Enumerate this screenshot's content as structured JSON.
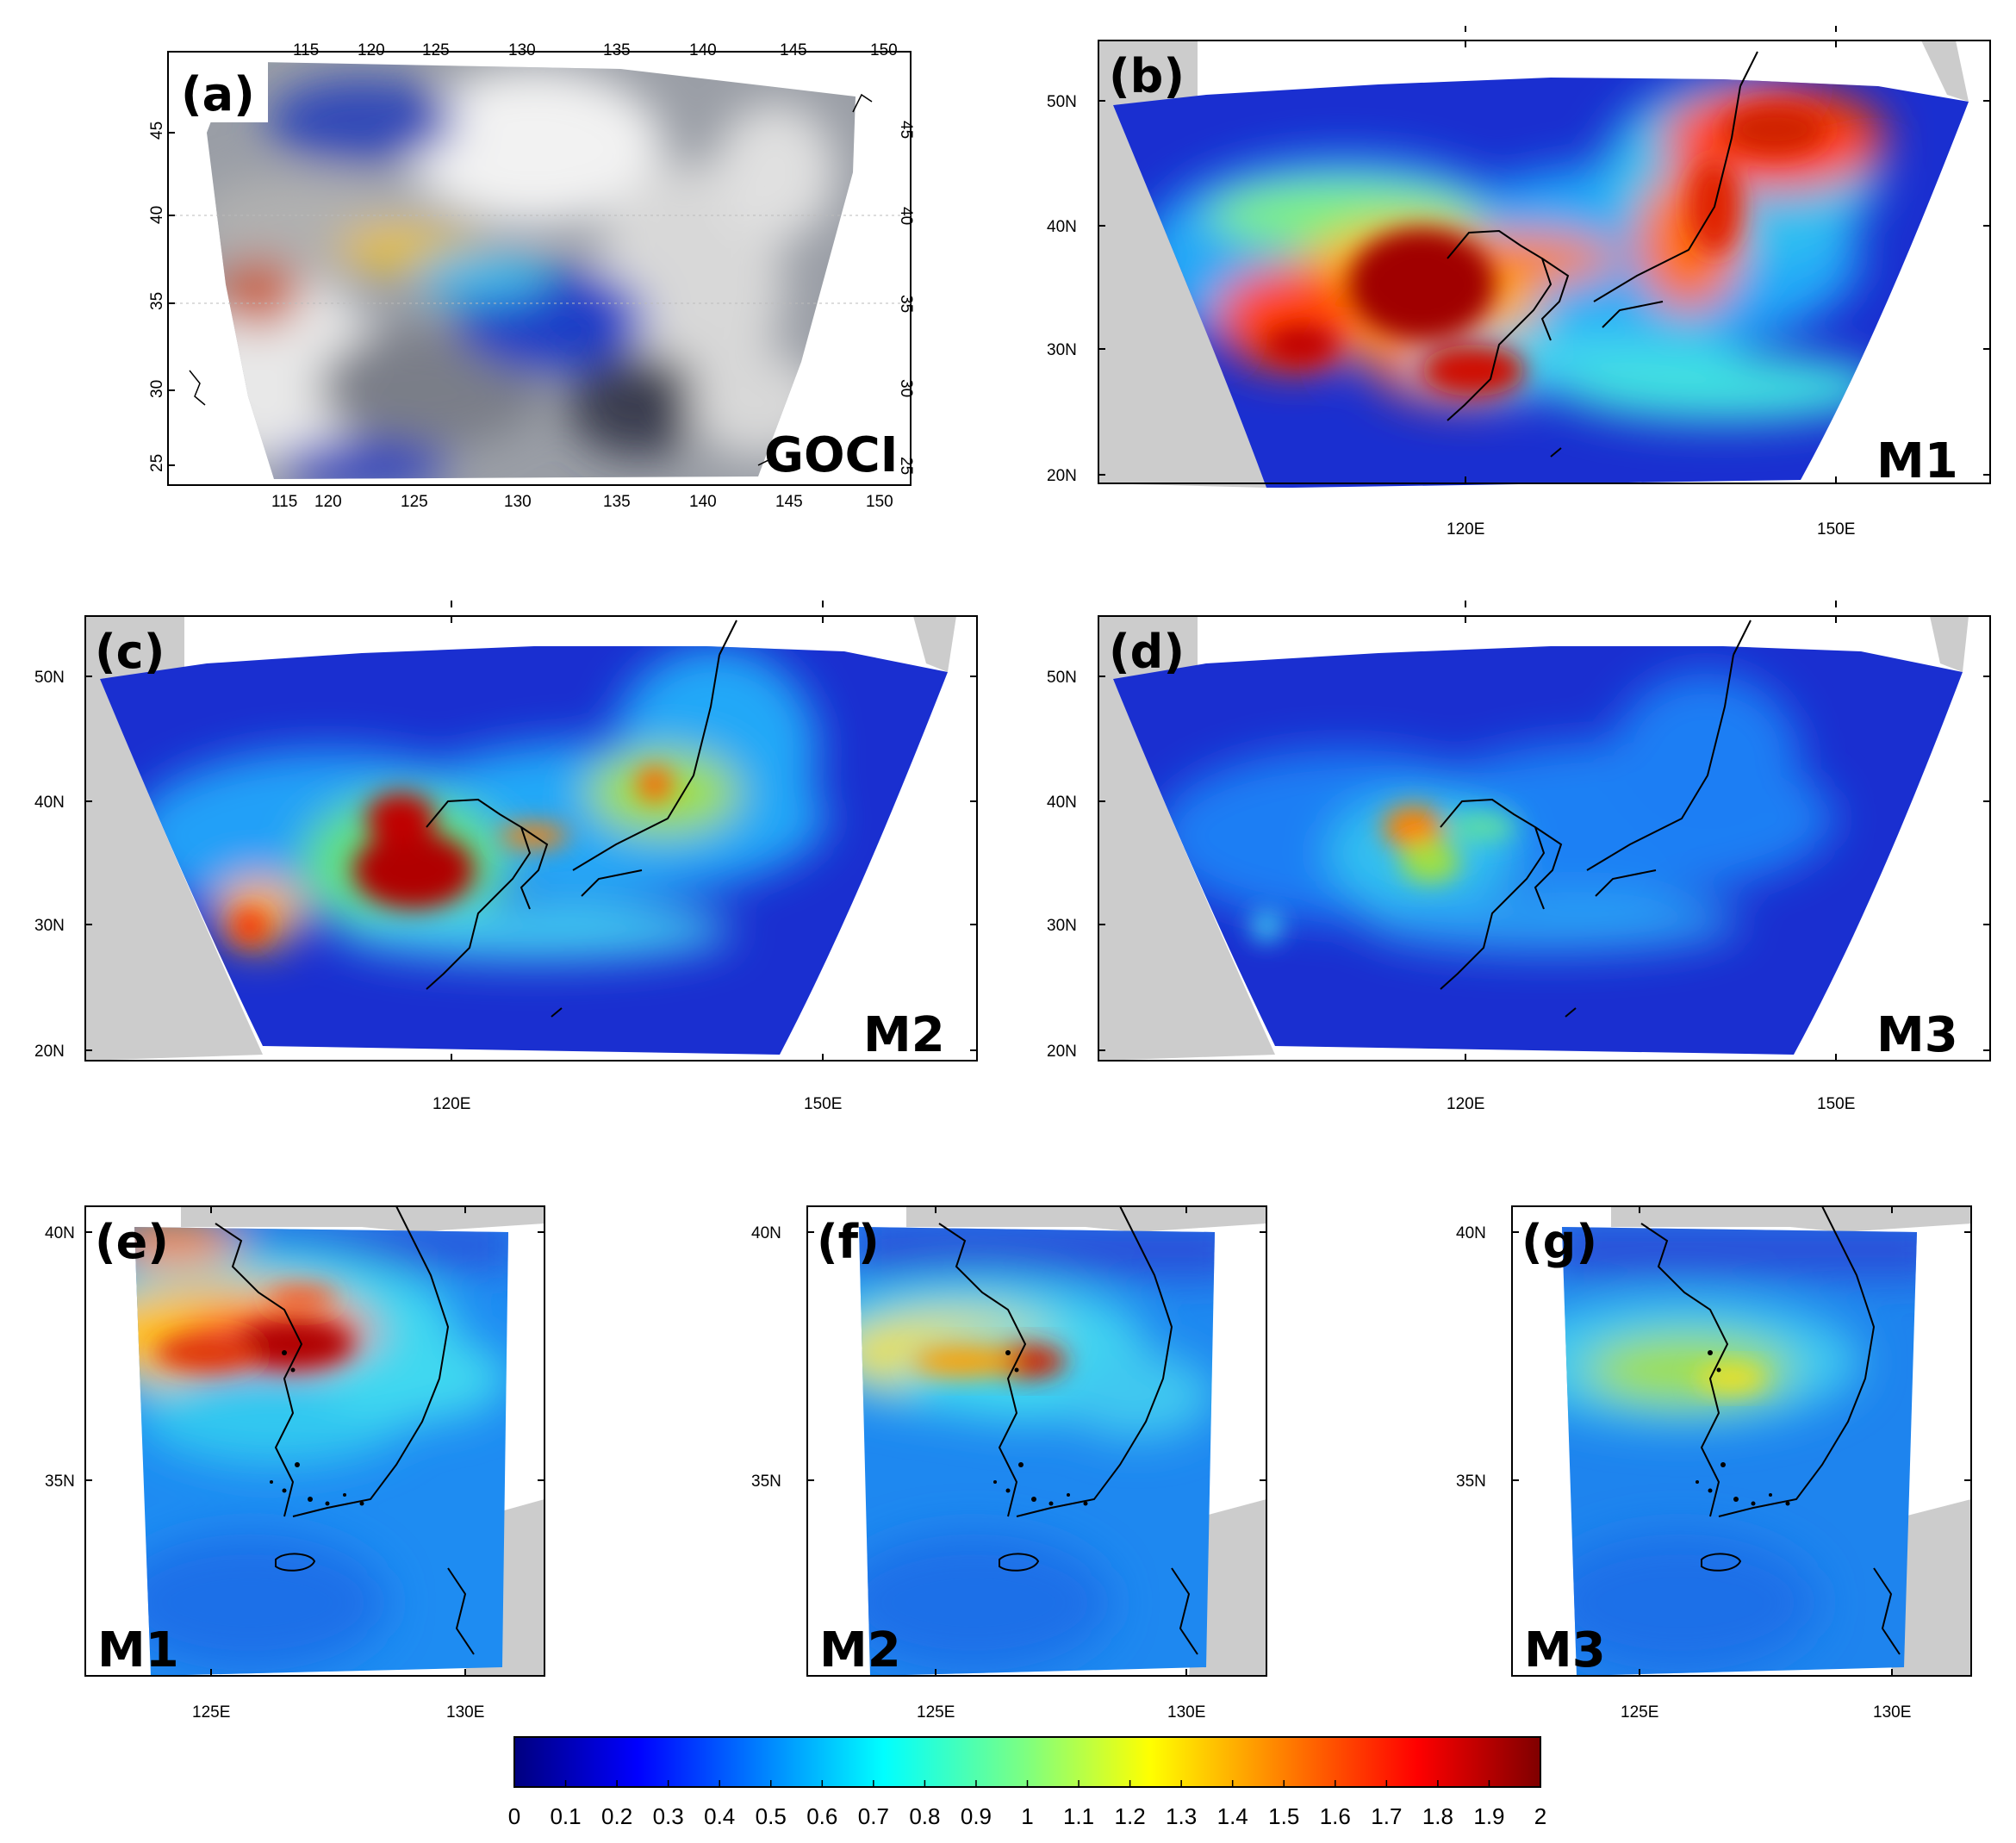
{
  "figure": {
    "colorbar": {
      "ticks": [
        "0",
        "0.1",
        "0.2",
        "0.3",
        "0.4",
        "0.5",
        "0.6",
        "0.7",
        "0.8",
        "0.9",
        "1",
        "1.1",
        "1.2",
        "1.3",
        "1.4",
        "1.5",
        "1.6",
        "1.7",
        "1.8",
        "1.9",
        "2"
      ],
      "range": [
        0,
        2
      ],
      "colormap": "jet"
    },
    "colors": {
      "land": "#cccccc",
      "ocean_low": "#1a2fd0",
      "frame": "#000000"
    },
    "panels": [
      {
        "id": "a",
        "label": "(a)",
        "name": "GOCI",
        "lon_ticks": [
          "115",
          "120",
          "125",
          "130",
          "135",
          "140",
          "145",
          "150"
        ],
        "lat_ticks": [
          "25",
          "30",
          "35",
          "40",
          "45"
        ]
      },
      {
        "id": "b",
        "label": "(b)",
        "name": "M1",
        "lat_ticks": [
          "50N",
          "40N",
          "30N",
          "20N"
        ],
        "lon_ticks": [
          "120E",
          "150E"
        ]
      },
      {
        "id": "c",
        "label": "(c)",
        "name": "M2",
        "lat_ticks": [
          "50N",
          "40N",
          "30N",
          "20N"
        ],
        "lon_ticks": [
          "120E",
          "150E"
        ]
      },
      {
        "id": "d",
        "label": "(d)",
        "name": "M3",
        "lat_ticks": [
          "50N",
          "40N",
          "30N",
          "20N"
        ],
        "lon_ticks": [
          "120E",
          "150E"
        ]
      },
      {
        "id": "e",
        "label": "(e)",
        "name": "M1",
        "lat_ticks": [
          "40N",
          "35N"
        ],
        "lon_ticks": [
          "125E",
          "130E"
        ]
      },
      {
        "id": "f",
        "label": "(f)",
        "name": "M2",
        "lat_ticks": [
          "40N",
          "35N"
        ],
        "lon_ticks": [
          "125E",
          "130E"
        ]
      },
      {
        "id": "g",
        "label": "(g)",
        "name": "M3",
        "lat_ticks": [
          "40N",
          "35N"
        ],
        "lon_ticks": [
          "125E",
          "130E"
        ]
      }
    ]
  }
}
